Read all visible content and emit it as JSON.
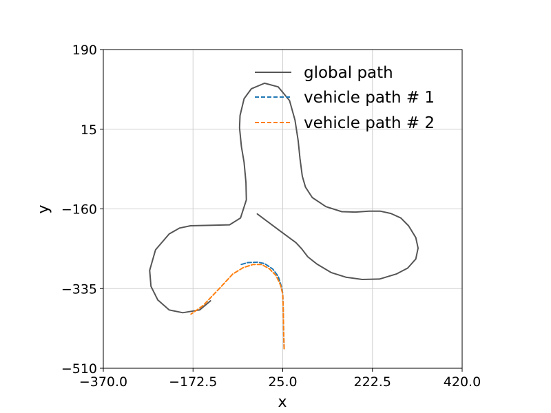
{
  "chart_data": {
    "type": "line",
    "title": "",
    "xlabel": "x",
    "ylabel": "y",
    "xlim": [
      -370,
      420
    ],
    "ylim": [
      -510,
      190
    ],
    "x_ticks": [
      "−370.0",
      "−172.5",
      "25.0",
      "222.5",
      "420.0"
    ],
    "x_tick_values": [
      -370,
      -172.5,
      25,
      222.5,
      420
    ],
    "y_ticks": [
      "190",
      "15",
      "−160",
      "−335",
      "−510"
    ],
    "y_tick_values": [
      190,
      15,
      -160,
      -335,
      -510
    ],
    "grid": true,
    "legend_position": "top-right",
    "series": [
      {
        "name": "global path",
        "color": "#555555",
        "dash": "solid",
        "points": [
          [
            -31,
            -171
          ],
          [
            20,
            -209
          ],
          [
            54,
            -234
          ],
          [
            67,
            -248
          ],
          [
            80,
            -265
          ],
          [
            100,
            -281
          ],
          [
            132,
            -300
          ],
          [
            164,
            -310
          ],
          [
            200,
            -315
          ],
          [
            238,
            -314
          ],
          [
            275,
            -303
          ],
          [
            300,
            -290
          ],
          [
            318,
            -270
          ],
          [
            323,
            -246
          ],
          [
            318,
            -223
          ],
          [
            302,
            -197
          ],
          [
            285,
            -180
          ],
          [
            263,
            -170
          ],
          [
            240,
            -165
          ],
          [
            215,
            -165
          ],
          [
            185,
            -167
          ],
          [
            155,
            -166
          ],
          [
            120,
            -155
          ],
          [
            90,
            -135
          ],
          [
            75,
            -112
          ],
          [
            68,
            -88
          ],
          [
            63,
            -50
          ],
          [
            59,
            -10
          ],
          [
            52,
            35
          ],
          [
            40,
            78
          ],
          [
            15,
            108
          ],
          [
            -15,
            116
          ],
          [
            -44,
            104
          ],
          [
            -60,
            82
          ],
          [
            -69,
            45
          ],
          [
            -70,
            18
          ],
          [
            -66,
            -23
          ],
          [
            -60,
            -58
          ],
          [
            -56,
            -102
          ],
          [
            -55,
            -140
          ],
          [
            -68,
            -180
          ],
          [
            -92,
            -195
          ],
          [
            -130,
            -196
          ],
          [
            -178,
            -197
          ],
          [
            -202,
            -202
          ],
          [
            -225,
            -215
          ],
          [
            -255,
            -250
          ],
          [
            -268,
            -295
          ],
          [
            -265,
            -330
          ],
          [
            -250,
            -360
          ],
          [
            -225,
            -382
          ],
          [
            -195,
            -388
          ],
          [
            -158,
            -382
          ],
          [
            -134,
            -362
          ]
        ]
      },
      {
        "name": "vehicle path # 1",
        "color": "#1f77b4",
        "dash": "dashed",
        "points": [
          [
            28,
            -467
          ],
          [
            27,
            -430
          ],
          [
            26,
            -380
          ],
          [
            25,
            -346
          ],
          [
            22,
            -330
          ],
          [
            15,
            -308
          ],
          [
            3,
            -292
          ],
          [
            -15,
            -280
          ],
          [
            -30,
            -277
          ],
          [
            -52,
            -278
          ],
          [
            -70,
            -283
          ]
        ]
      },
      {
        "name": "vehicle path # 2",
        "color": "#ff7f0e",
        "dash": "dashed",
        "points": [
          [
            28,
            -467
          ],
          [
            27,
            -430
          ],
          [
            26,
            -380
          ],
          [
            25,
            -347
          ],
          [
            20,
            -327
          ],
          [
            10,
            -306
          ],
          [
            -5,
            -291
          ],
          [
            -22,
            -282
          ],
          [
            -40,
            -282
          ],
          [
            -62,
            -289
          ],
          [
            -85,
            -303
          ],
          [
            -110,
            -330
          ],
          [
            -132,
            -353
          ],
          [
            -150,
            -372
          ],
          [
            -168,
            -385
          ],
          [
            -177,
            -391
          ]
        ]
      }
    ]
  }
}
